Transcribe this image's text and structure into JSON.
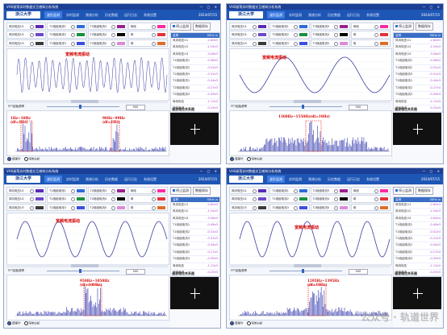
{
  "window_title": "VHS振荡实时数据交互感知分析系统",
  "logo_text": "浙江大学",
  "tabs": [
    "波形监测",
    "实时监测",
    "频谱分析",
    "历史数据",
    "运行日志",
    "系统设置"
  ],
  "date": "2024/07/15",
  "channels": [
    "风向电压U1",
    "T1绕组电流1",
    "T2绕组电流3",
    "母线",
    "风向电压U2",
    "T1绕组电流2",
    "T2绕组电流4",
    "母",
    "风向电压U3",
    "T1绕组电流3",
    "T2绕组电流5",
    "母"
  ],
  "channel_colors": [
    "#5a2bb6",
    "#2d6cd9",
    "#9b1f8e",
    "#ff2aa0",
    "#6d48cc",
    "#1a8f3f",
    "#000000",
    "#e4333c",
    "#3a3a3a",
    "#3b4fe0",
    "#dc8bd8",
    "#e06b2a"
  ],
  "right_panel": {
    "btn1": "停止监测",
    "btn2": "数据保存",
    "table_header_name": "名称",
    "table_header_unit": "50Hz /s",
    "rows": [
      {
        "name": "风向电压U1",
        "value": "-2.80e3"
      },
      {
        "name": "风向电压U2",
        "value": "-1.54e3"
      },
      {
        "name": "风向电压U3",
        "value": "-3.06e3"
      },
      {
        "name": "T1绕组电流1",
        "value": "-0.48e3"
      },
      {
        "name": "T1绕组电流2",
        "value": "-0.52e3"
      },
      {
        "name": "T1绕组电流3",
        "value": "-0.31e3"
      },
      {
        "name": "T2绕组电流1",
        "value": "-0.44e3"
      },
      {
        "name": "T2绕组电流2",
        "value": "-0.27e3"
      },
      {
        "name": "T2绕组电流3",
        "value": "-0.39e3"
      },
      {
        "name": "母线电压",
        "value": "-1.12e3"
      },
      {
        "name": "母线电流",
        "value": "-0.25e3"
      }
    ],
    "phase_title": "谐波相位关系图"
  },
  "controls": {
    "label": "FFT起始频率",
    "value": "500"
  },
  "footer": {
    "opt1": "傅里叶",
    "opt2": "窄带分析"
  },
  "panels": [
    {
      "wave_label": "宽频电流振动",
      "spec_labels": [
        {
          "text": "1Hz~10Hz",
          "sub": "(df=1Hz)"
        },
        {
          "text": "90Hz~99Hz",
          "sub": "(df=1Hz)"
        }
      ]
    },
    {
      "wave_label": "宽频电流振动",
      "spec_labels": [
        {
          "text": "1360Hz~1550Hz(df=10Hz)",
          "sub": ""
        }
      ]
    },
    {
      "wave_label": "宽频电流振动",
      "spec_labels": [
        {
          "text": "950Hz~1050Hz",
          "sub": "(df=100Hz)"
        }
      ]
    },
    {
      "wave_label": "宽频电流振动",
      "spec_labels": [
        {
          "text": "1295Hz~1395Hz",
          "sub": "(df=10Hz)"
        }
      ]
    }
  ],
  "watermark": "公众号 · 轨道世界"
}
